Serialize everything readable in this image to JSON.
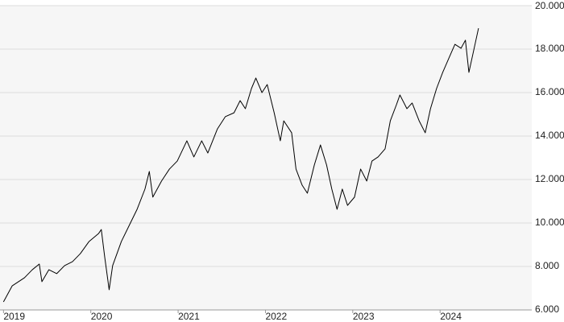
{
  "chart_data": {
    "type": "line",
    "x": [
      2019.0,
      2019.1,
      2019.24,
      2019.33,
      2019.41,
      2019.44,
      2019.52,
      2019.61,
      2019.7,
      2019.79,
      2019.88,
      2019.98,
      2020.09,
      2020.12,
      2020.16,
      2020.21,
      2020.25,
      2020.35,
      2020.44,
      2020.53,
      2020.62,
      2020.67,
      2020.71,
      2020.81,
      2020.9,
      2020.99,
      2021.1,
      2021.18,
      2021.27,
      2021.34,
      2021.45,
      2021.54,
      2021.64,
      2021.71,
      2021.77,
      2021.84,
      2021.89,
      2021.96,
      2022.02,
      2022.1,
      2022.17,
      2022.21,
      2022.3,
      2022.35,
      2022.42,
      2022.48,
      2022.56,
      2022.63,
      2022.7,
      2022.76,
      2022.82,
      2022.88,
      2022.94,
      2023.02,
      2023.09,
      2023.16,
      2023.22,
      2023.29,
      2023.37,
      2023.43,
      2023.5,
      2023.54,
      2023.62,
      2023.68,
      2023.76,
      2023.83,
      2023.89,
      2023.96,
      2024.03,
      2024.11,
      2024.17,
      2024.24,
      2024.29,
      2024.33,
      2024.38,
      2024.44
    ],
    "series": [
      {
        "color": "#000000",
        "values": [
          6370,
          7110,
          7480,
          7850,
          8110,
          7300,
          7850,
          7670,
          8040,
          8220,
          8590,
          9150,
          9520,
          9700,
          8410,
          6930,
          8040,
          9150,
          9890,
          10630,
          11560,
          12370,
          11190,
          11930,
          12480,
          12850,
          13780,
          13040,
          13780,
          13220,
          14330,
          14890,
          15070,
          15630,
          15260,
          16190,
          16670,
          16000,
          16370,
          15070,
          13780,
          14700,
          14150,
          12480,
          11740,
          11370,
          12670,
          13590,
          12670,
          11560,
          10630,
          11560,
          10810,
          11190,
          12480,
          11930,
          12850,
          13040,
          13410,
          14700,
          15440,
          15890,
          15260,
          15520,
          14700,
          14150,
          15260,
          16190,
          16930,
          17670,
          18220,
          18040,
          18410,
          16930,
          17850,
          18960
        ]
      }
    ],
    "xlim": [
      2018.96,
      2025.05
    ],
    "xticks": [
      2019,
      2020,
      2021,
      2022,
      2023,
      2024
    ],
    "ylim": [
      6000,
      20000
    ],
    "yticks": [
      {
        "value": 6000,
        "label": "6.000"
      },
      {
        "value": 8000,
        "label": "8.000"
      },
      {
        "value": 10000,
        "label": "10.000"
      },
      {
        "value": 12000,
        "label": "12.000"
      },
      {
        "value": 14000,
        "label": "14.000"
      },
      {
        "value": 16000,
        "label": "16.000"
      },
      {
        "value": 18000,
        "label": "18.000"
      },
      {
        "value": 20000,
        "label": "20.000"
      }
    ],
    "grid": true
  }
}
